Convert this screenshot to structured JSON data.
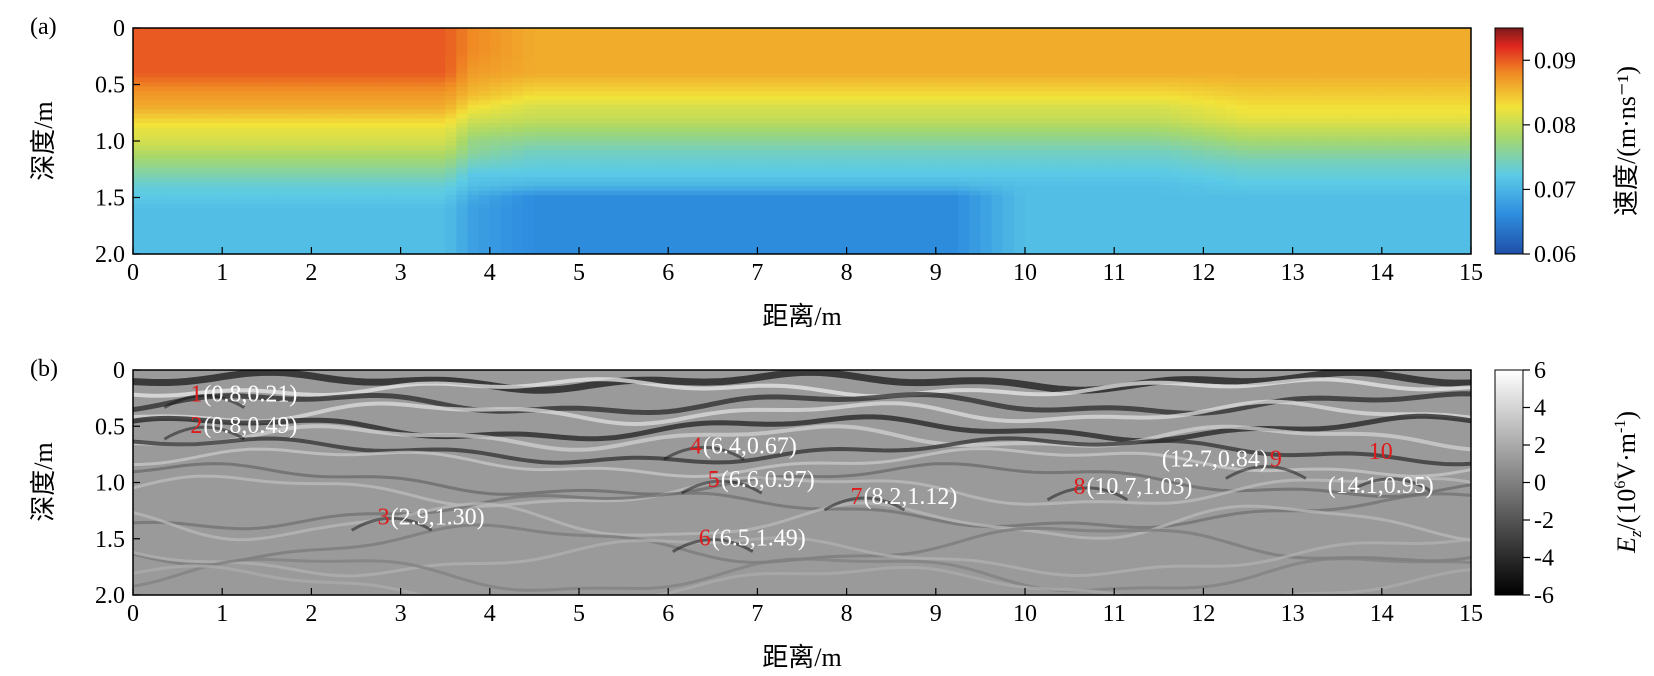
{
  "chart_data": [
    {
      "type": "heatmap",
      "panel_label": "(a)",
      "xlabel": "距离/m",
      "ylabel": "深度/m",
      "xlim": [
        0,
        15
      ],
      "ylim": [
        0,
        2.0
      ],
      "y_inverted": true,
      "x_ticks": [
        "0",
        "1",
        "2",
        "3",
        "4",
        "5",
        "6",
        "7",
        "8",
        "9",
        "10",
        "11",
        "12",
        "13",
        "14",
        "15"
      ],
      "y_ticks": [
        "0",
        "0.5",
        "1.0",
        "1.5",
        "2.0"
      ],
      "colorbar": {
        "label": "速度/(m·ns⁻¹)",
        "range": [
          0.06,
          0.095
        ],
        "ticks": [
          "0.09",
          "0.08",
          "0.07",
          "0.06"
        ],
        "colormap": "jet"
      },
      "velocity_model": {
        "depth_nodes": [
          0,
          0.2,
          0.4,
          0.6,
          0.7,
          0.8,
          0.9,
          1.0,
          1.1,
          1.2,
          1.3,
          1.4,
          1.5,
          1.6,
          2.0
        ],
        "columns": [
          {
            "x": 0,
            "v": [
              0.09,
              0.09,
              0.09,
              0.087,
              0.086,
              0.084,
              0.082,
              0.081,
              0.079,
              0.077,
              0.075,
              0.073,
              0.072,
              0.071,
              0.071
            ]
          },
          {
            "x": 3.5,
            "v": [
              0.09,
              0.09,
              0.09,
              0.087,
              0.086,
              0.084,
              0.082,
              0.081,
              0.079,
              0.077,
              0.075,
              0.073,
              0.072,
              0.071,
              0.071
            ]
          },
          {
            "x": 3.8,
            "v": [
              0.088,
              0.088,
              0.087,
              0.085,
              0.083,
              0.081,
              0.079,
              0.077,
              0.076,
              0.074,
              0.072,
              0.071,
              0.069,
              0.068,
              0.068
            ]
          },
          {
            "x": 4.5,
            "v": [
              0.086,
              0.086,
              0.086,
              0.083,
              0.081,
              0.08,
              0.078,
              0.076,
              0.074,
              0.073,
              0.072,
              0.07,
              0.066,
              0.066,
              0.066
            ]
          },
          {
            "x": 9.2,
            "v": [
              0.086,
              0.086,
              0.086,
              0.083,
              0.081,
              0.08,
              0.078,
              0.076,
              0.074,
              0.073,
              0.072,
              0.07,
              0.066,
              0.066,
              0.066
            ]
          },
          {
            "x": 10.0,
            "v": [
              0.086,
              0.086,
              0.086,
              0.083,
              0.081,
              0.08,
              0.078,
              0.076,
              0.074,
              0.073,
              0.072,
              0.071,
              0.071,
              0.071,
              0.071
            ]
          },
          {
            "x": 11.5,
            "v": [
              0.086,
              0.086,
              0.086,
              0.083,
              0.081,
              0.08,
              0.078,
              0.076,
              0.074,
              0.073,
              0.072,
              0.071,
              0.071,
              0.071,
              0.071
            ]
          },
          {
            "x": 12.5,
            "v": [
              0.086,
              0.086,
              0.086,
              0.084,
              0.083,
              0.082,
              0.08,
              0.078,
              0.076,
              0.074,
              0.073,
              0.072,
              0.071,
              0.071,
              0.071
            ]
          },
          {
            "x": 15,
            "v": [
              0.086,
              0.086,
              0.086,
              0.084,
              0.083,
              0.082,
              0.08,
              0.078,
              0.076,
              0.074,
              0.073,
              0.072,
              0.071,
              0.071,
              0.071
            ]
          }
        ]
      }
    },
    {
      "type": "heatmap",
      "panel_label": "(b)",
      "xlabel": "距离/m",
      "ylabel": "深度/m",
      "xlim": [
        0,
        15
      ],
      "ylim": [
        0,
        2.0
      ],
      "y_inverted": true,
      "x_ticks": [
        "0",
        "1",
        "2",
        "3",
        "4",
        "5",
        "6",
        "7",
        "8",
        "9",
        "10",
        "11",
        "12",
        "13",
        "14",
        "15"
      ],
      "y_ticks": [
        "0",
        "0.5",
        "1.0",
        "1.5",
        "2.0"
      ],
      "colorbar": {
        "label_var": "E",
        "label_sub": "z",
        "label_unit_a": "/(10",
        "label_unit_sup6": "6",
        "label_unit_b": "V·m",
        "label_unit_supm1": "-1",
        "label_close": ")",
        "range": [
          -6,
          6
        ],
        "ticks": [
          "6",
          "4",
          "2",
          "0",
          "-2",
          "-4",
          "-6"
        ],
        "colormap": "gray"
      },
      "annotations": [
        {
          "num": "1",
          "text": "(0.8,0.21)",
          "x": 0.8,
          "y": 0.21,
          "num_side": "left"
        },
        {
          "num": "2",
          "text": "(0.8,0.49)",
          "x": 0.8,
          "y": 0.49,
          "num_side": "left"
        },
        {
          "num": "3",
          "text": "(2.9,1.30)",
          "x": 2.9,
          "y": 1.3,
          "num_side": "left"
        },
        {
          "num": "4",
          "text": "(6.4,0.67)",
          "x": 6.4,
          "y": 0.67,
          "num_side": "left"
        },
        {
          "num": "5",
          "text": "(6.6,0.97)",
          "x": 6.6,
          "y": 0.97,
          "num_side": "left"
        },
        {
          "num": "6",
          "text": "(6.5,1.49)",
          "x": 6.5,
          "y": 1.49,
          "num_side": "left"
        },
        {
          "num": "7",
          "text": "(8.2,1.12)",
          "x": 8.2,
          "y": 1.12,
          "num_side": "left"
        },
        {
          "num": "8",
          "text": "(10.7,1.03)",
          "x": 10.7,
          "y": 1.03,
          "num_side": "left"
        },
        {
          "num": "9",
          "text": "(12.7,0.84)",
          "x": 12.7,
          "y": 0.84,
          "num_side": "right"
        },
        {
          "num": "10",
          "text": "(14.1,0.95)",
          "x": 14.1,
          "y": 0.95,
          "num_side": "above"
        }
      ]
    }
  ]
}
